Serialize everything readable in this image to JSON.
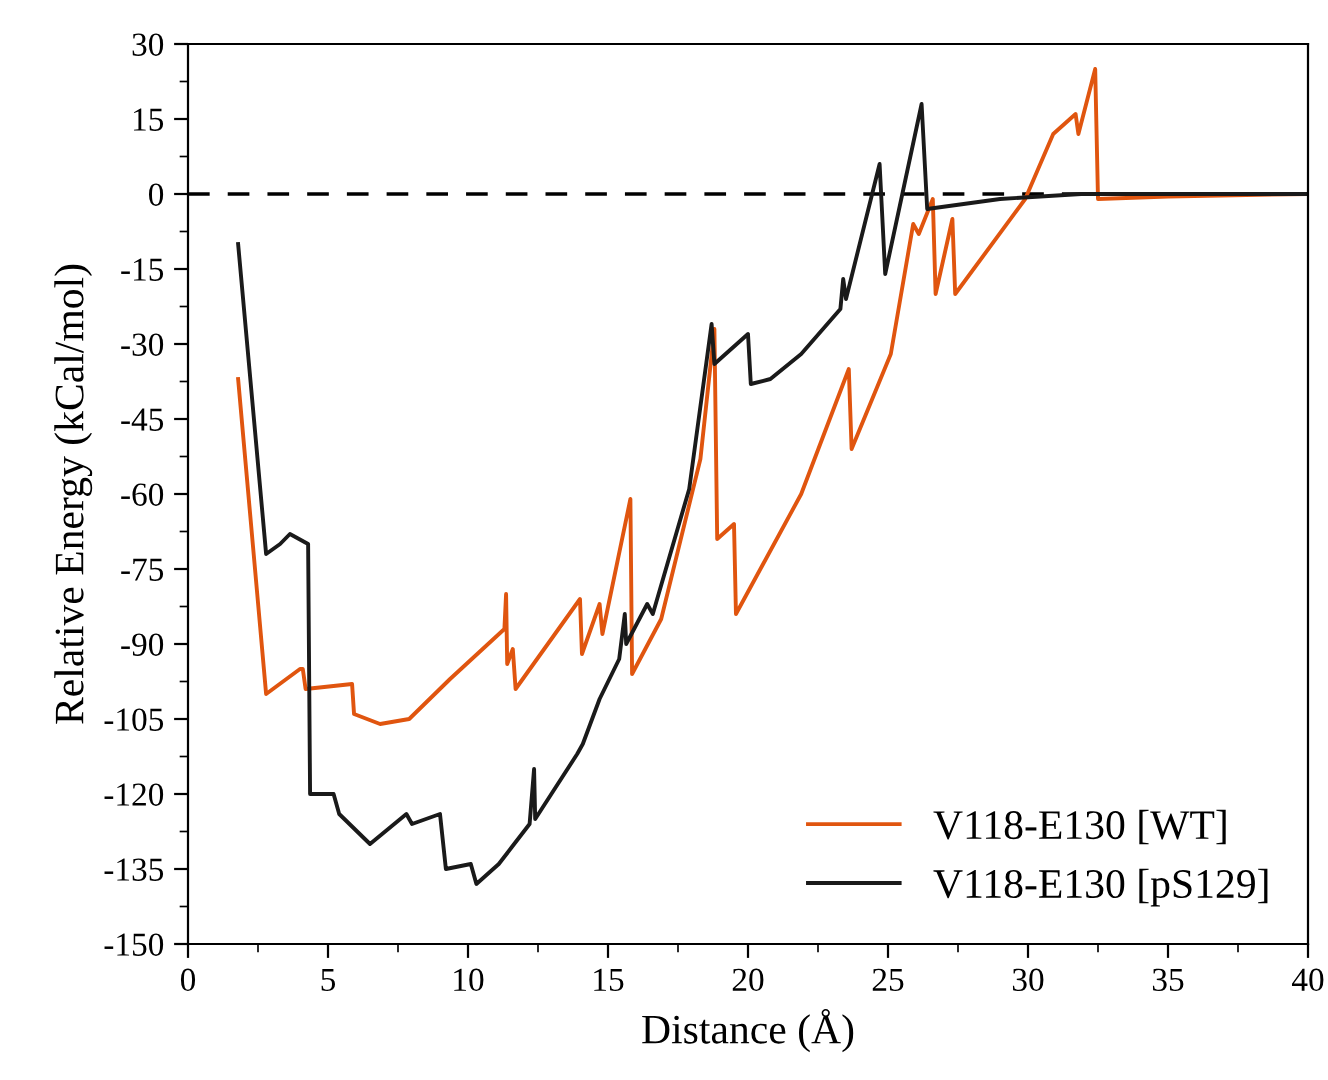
{
  "chart_data": {
    "type": "line",
    "xlabel": "Distance (Å)",
    "ylabel": "Relative Energy (kCal/mol)",
    "xlim": [
      0,
      40
    ],
    "xticks": [
      0,
      5,
      10,
      15,
      20,
      25,
      30,
      35,
      40
    ],
    "ylim": [
      -150,
      30
    ],
    "yticks": [
      -150,
      -135,
      -120,
      -105,
      -90,
      -75,
      -60,
      -45,
      -30,
      -15,
      0,
      15,
      30
    ],
    "grid": false,
    "legend": "bottom right",
    "marker": "none",
    "line_style": "solid",
    "ref_lines": [
      {
        "axis": "y",
        "value": 0,
        "color": "#000000",
        "line_style": "dashed"
      }
    ],
    "series": [
      {
        "name": "V118-E130 [WT]",
        "color": "#e0550f",
        "x": [
          1.79,
          2.79,
          4.0,
          4.1,
          4.2,
          5.86,
          5.93,
          6.86,
          7.9,
          9.36,
          11.3,
          11.36,
          11.4,
          11.6,
          11.7,
          14.0,
          14.07,
          14.7,
          14.8,
          15.8,
          15.86,
          16.9,
          18.3,
          18.8,
          18.9,
          19.5,
          19.57,
          21.9,
          23.6,
          23.7,
          25.1,
          25.9,
          26.1,
          26.6,
          26.7,
          27.3,
          27.4,
          29.9,
          30.9,
          31.7,
          31.8,
          32.4,
          32.5,
          35,
          40
        ],
        "values": [
          -37,
          -100,
          -95,
          -95,
          -99,
          -98,
          -104,
          -106,
          -105,
          -97,
          -87,
          -80,
          -94,
          -91,
          -99,
          -81,
          -92,
          -82,
          -88,
          -61,
          -96,
          -85,
          -53,
          -27,
          -69,
          -66,
          -84,
          -60,
          -35,
          -51,
          -32,
          -6,
          -8,
          -1,
          -20,
          -5,
          -20,
          -1,
          12,
          16,
          12,
          25,
          -1,
          -0.5,
          0
        ]
      },
      {
        "name": "V118-E130 [pS129]",
        "color": "#1a1a1a",
        "x": [
          1.79,
          2.79,
          3.29,
          3.64,
          4.29,
          4.36,
          5.2,
          5.4,
          6.5,
          7.8,
          8.0,
          9.0,
          9.21,
          10.1,
          10.3,
          11.1,
          12.2,
          12.36,
          12.4,
          13.9,
          14.1,
          14.7,
          15.4,
          15.6,
          15.65,
          16.4,
          16.6,
          17.9,
          18.7,
          18.8,
          20.0,
          20.1,
          20.8,
          21.9,
          23.3,
          23.4,
          23.5,
          24.7,
          24.9,
          26.2,
          26.4,
          29.0,
          31.9,
          40
        ],
        "values": [
          -10,
          -72,
          -70,
          -68,
          -70,
          -120,
          -120,
          -124,
          -130,
          -124,
          -126,
          -124,
          -135,
          -134,
          -138,
          -134,
          -126,
          -115,
          -125,
          -112,
          -110,
          -101,
          -93,
          -84,
          -90,
          -82,
          -84,
          -59,
          -26,
          -34,
          -28,
          -38,
          -37,
          -32,
          -23,
          -17,
          -21,
          6,
          -16,
          18,
          -3,
          -1,
          0,
          0
        ]
      }
    ]
  }
}
